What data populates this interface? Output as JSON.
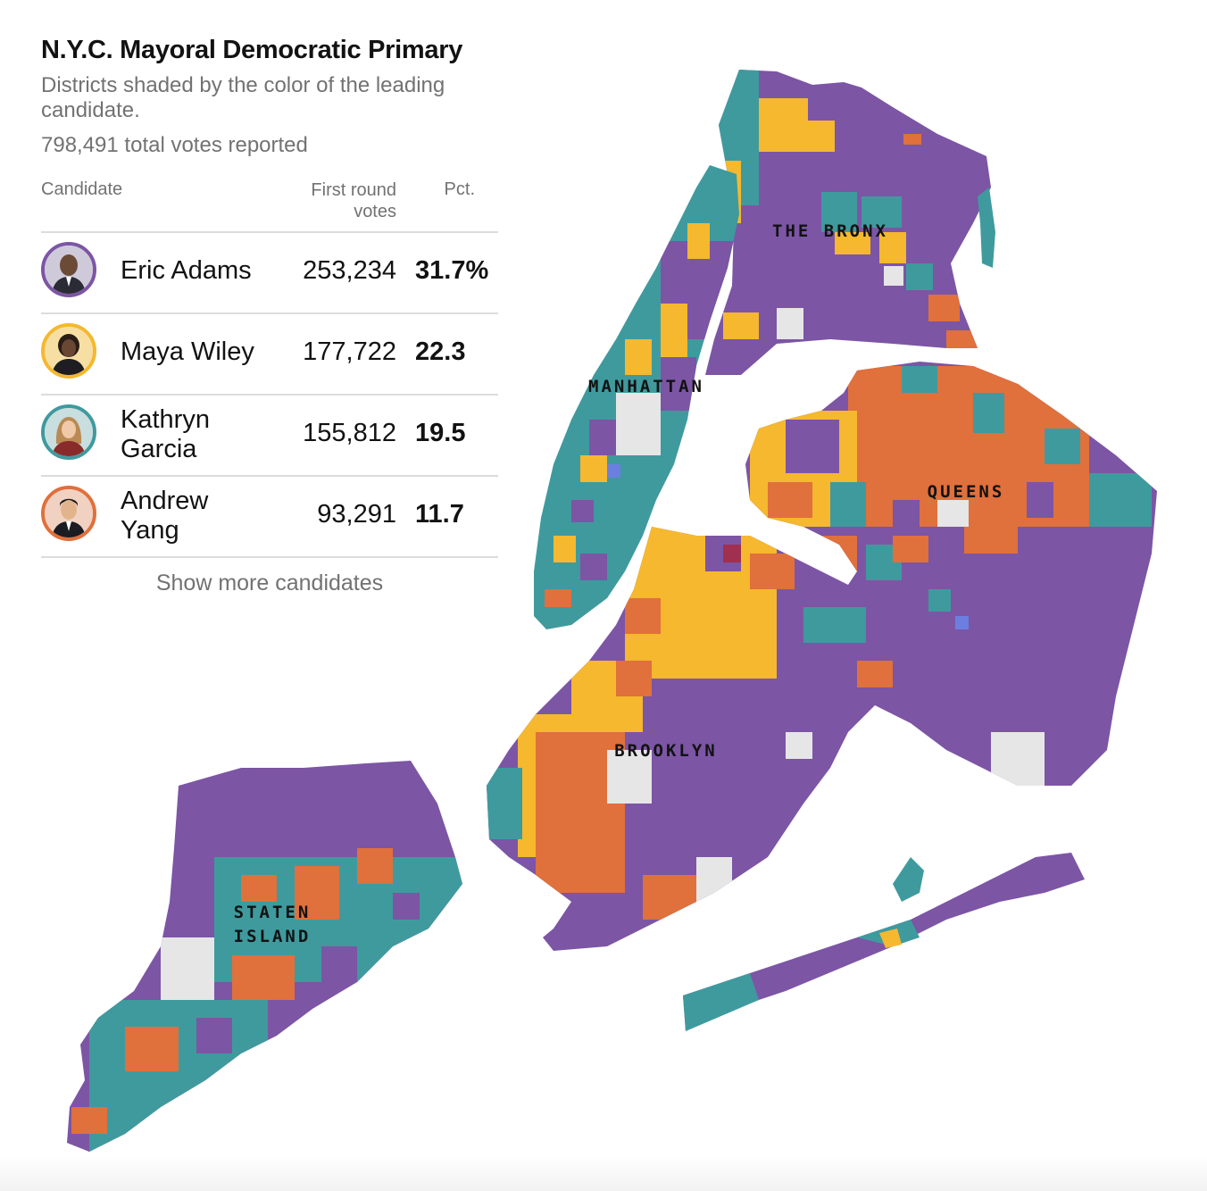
{
  "header": {
    "title": "N.Y.C. Mayoral Democratic Primary",
    "subtitle": "Districts shaded by the color of the leading candidate.",
    "total_votes": "798,491 total votes reported"
  },
  "table": {
    "col_candidate": "Candidate",
    "col_votes_line1": "First round",
    "col_votes_line2": "votes",
    "col_pct": "Pct.",
    "rows": [
      {
        "name_line1": "Eric Adams",
        "name_line2": "",
        "votes": "253,234",
        "pct": "31.7%",
        "color": "#7c55a5",
        "avatar_bg": "#d9d4e4"
      },
      {
        "name_line1": "Maya Wiley",
        "name_line2": "",
        "votes": "177,722",
        "pct": "22.3",
        "color": "#f5b82e",
        "avatar_bg": "#fbe6b0"
      },
      {
        "name_line1": "Kathryn",
        "name_line2": "Garcia",
        "votes": "155,812",
        "pct": "19.5",
        "color": "#3f9a9e",
        "avatar_bg": "#d3e6e6"
      },
      {
        "name_line1": "Andrew",
        "name_line2": "Yang",
        "votes": "93,291",
        "pct": "11.7",
        "color": "#e0703c",
        "avatar_bg": "#f6d6c6"
      }
    ],
    "more_label": "Show more candidates"
  },
  "map": {
    "labels": {
      "bronx": "THE BRONX",
      "manhattan": "MANHATTAN",
      "queens": "QUEENS",
      "brooklyn": "BROOKLYN",
      "staten_line1": "STATEN",
      "staten_line2": "ISLAND"
    },
    "colors": {
      "adams": "#7c55a5",
      "wiley": "#f5b82e",
      "garcia": "#3f9a9e",
      "yang": "#e0703c",
      "other": "#6b7fe0",
      "no_data": "#e6e6e6"
    }
  }
}
